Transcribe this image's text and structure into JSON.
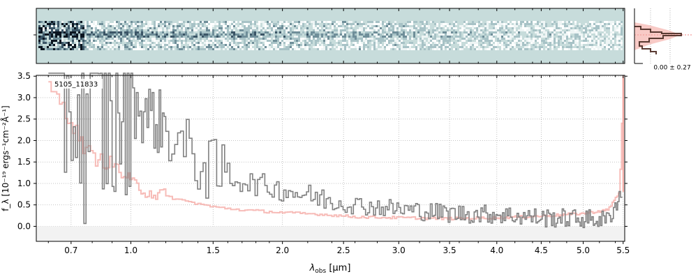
{
  "chart_data": [
    {
      "type": "heatmap",
      "panel": "2D spectrum",
      "cmap": "bone_r-like (teal background, dark noisy pixels)",
      "background_color": "#c7dcdb",
      "x_range_um": [
        0.55,
        5.52
      ]
    },
    {
      "type": "line",
      "panel": "1D spectrum",
      "label": "5105_11833",
      "xlabel_main": "λ",
      "xlabel_sub": "obs",
      "xlabel_unit": "[μm]",
      "ylabel": "f_λ [10⁻¹⁹ ergs⁻¹cm⁻²Å⁻¹]",
      "x_scale": "sqrt-like (tick spacing narrows toward long wavelengths)",
      "xlim": [
        0.55,
        5.52
      ],
      "ylim": [
        -0.35,
        3.52
      ],
      "xticks": [
        0.7,
        1.0,
        1.5,
        2.0,
        2.5,
        3.0,
        3.5,
        4.0,
        4.5,
        5.0,
        5.5
      ],
      "xtick_labels": [
        "0.7",
        "1.0",
        "1.5",
        "2.0",
        "2.5",
        "3.0",
        "3.5",
        "4.0",
        "4.5",
        "5.0",
        "5.5"
      ],
      "yticks": [
        0.0,
        0.5,
        1.0,
        1.5,
        2.0,
        2.5,
        3.0,
        3.5
      ],
      "ytick_labels": [
        "0.0",
        "0.5",
        "1.0",
        "1.5",
        "2.0",
        "2.5",
        "3.0",
        "3.5"
      ],
      "grid": true,
      "series": [
        {
          "role": "observed flux (grey steps)",
          "color": "#808080",
          "x": [
            0.6,
            0.65,
            0.7,
            0.75,
            0.8,
            0.9,
            1.0,
            1.1,
            1.2,
            1.3,
            1.5,
            1.7,
            2.0,
            2.3,
            2.6,
            3.0,
            3.5,
            4.0,
            4.5,
            5.0,
            5.3,
            5.45,
            5.5
          ],
          "y": [
            3.5,
            2.8,
            3.0,
            2.2,
            2.6,
            2.4,
            2.9,
            2.6,
            2.3,
            1.8,
            1.25,
            1.05,
            0.85,
            0.65,
            0.5,
            0.4,
            0.3,
            0.28,
            0.2,
            0.18,
            0.15,
            0.7,
            0.7
          ]
        },
        {
          "role": "model / error (light red steps)",
          "color": "#f4a6a0",
          "x": [
            0.6,
            0.65,
            0.7,
            0.75,
            0.8,
            0.9,
            1.0,
            1.1,
            1.2,
            1.3,
            1.5,
            1.7,
            2.0,
            2.3,
            2.6,
            3.0,
            3.5,
            4.0,
            4.5,
            5.0,
            5.3,
            5.45,
            5.5
          ],
          "y": [
            3.2,
            2.9,
            2.4,
            1.9,
            1.6,
            1.45,
            1.0,
            0.8,
            0.7,
            0.6,
            0.45,
            0.38,
            0.32,
            0.28,
            0.22,
            0.2,
            0.18,
            0.2,
            0.24,
            0.3,
            0.38,
            0.8,
            3.5
          ]
        }
      ]
    },
    {
      "type": "histogram",
      "panel": "pixel distribution",
      "annotation": "0.00 ± 0.27",
      "colors": {
        "hist": "#5a3a32",
        "fill": "#f4a6a0"
      }
    }
  ]
}
